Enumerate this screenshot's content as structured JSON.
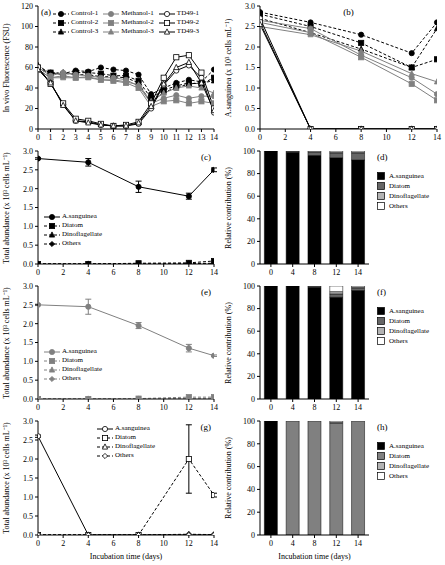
{
  "chart_data": [
    {
      "type": "line",
      "title": "(a)",
      "ylabel": "In vivo Fluorescence (FSU)",
      "x": [
        0,
        1,
        2,
        3,
        4,
        5,
        6,
        7,
        8,
        9,
        10,
        11,
        12,
        13,
        14
      ],
      "xlim": [
        0,
        14
      ],
      "xticks": [
        0,
        1,
        2,
        3,
        4,
        5,
        6,
        7,
        8,
        9,
        10,
        11,
        12,
        13,
        14
      ],
      "ylim": [
        0,
        120
      ],
      "yticks": [
        0,
        20,
        40,
        60,
        80,
        100,
        120
      ],
      "legend": "upper center",
      "series": [
        {
          "name": "Control-1",
          "color": "#000000",
          "marker": "circle",
          "line_style": "dashed",
          "values": [
            60,
            55,
            54,
            57,
            56,
            60,
            58,
            57,
            53,
            34,
            40,
            45,
            48,
            46,
            58
          ]
        },
        {
          "name": "Control-2",
          "color": "#000000",
          "marker": "square",
          "line_style": "dashed",
          "values": [
            58,
            55,
            53,
            55,
            55,
            54,
            52,
            52,
            47,
            30,
            38,
            42,
            45,
            44,
            50
          ]
        },
        {
          "name": "Control-3",
          "color": "#000000",
          "marker": "triangle",
          "line_style": "dashed",
          "values": [
            62,
            54,
            55,
            53,
            53,
            51,
            51,
            50,
            45,
            25,
            36,
            40,
            44,
            45,
            47
          ]
        },
        {
          "name": "Methanol-1",
          "color": "#808080",
          "marker": "circle",
          "line_style": "solid",
          "values": [
            60,
            52,
            55,
            53,
            52,
            50,
            50,
            48,
            42,
            25,
            30,
            33,
            30,
            32,
            32
          ]
        },
        {
          "name": "Methanol-2",
          "color": "#808080",
          "marker": "square",
          "line_style": "solid",
          "values": [
            58,
            50,
            52,
            50,
            51,
            48,
            47,
            45,
            40,
            22,
            27,
            28,
            25,
            27,
            25
          ]
        },
        {
          "name": "Methanol-3",
          "color": "#808080",
          "marker": "triangle",
          "line_style": "solid",
          "values": [
            58,
            50,
            50,
            50,
            50,
            48,
            48,
            46,
            43,
            27,
            35,
            40,
            42,
            40,
            35
          ]
        },
        {
          "name": "TD49-1",
          "color": "#000000",
          "marker": "open_circle",
          "line_style": "solid",
          "values": [
            60,
            45,
            24,
            8,
            7,
            4,
            3,
            3,
            5,
            20,
            43,
            57,
            62,
            50,
            16
          ]
        },
        {
          "name": "TD49-2",
          "color": "#000000",
          "marker": "open_square",
          "line_style": "solid",
          "values": [
            60,
            44,
            25,
            10,
            8,
            5,
            3,
            4,
            7,
            25,
            50,
            70,
            72,
            55,
            20
          ]
        },
        {
          "name": "TD49-3",
          "color": "#000000",
          "marker": "open_triangle",
          "line_style": "solid",
          "values": [
            58,
            45,
            23,
            8,
            6,
            4,
            3,
            3,
            6,
            22,
            44,
            60,
            65,
            45,
            18
          ]
        }
      ]
    },
    {
      "type": "line",
      "title": "(b)",
      "ylabel": "A.sanguinea (x 10³ cells mL⁻¹)",
      "x": [
        0,
        4,
        8,
        12,
        14
      ],
      "xlim": [
        0,
        14
      ],
      "xticks": [
        0,
        2,
        4,
        6,
        8,
        10,
        12,
        14
      ],
      "ylim": [
        0,
        3
      ],
      "yticks": [
        {
          "value": 0,
          "label": "0.0"
        },
        {
          "value": 0.5,
          "label": "0.5"
        },
        {
          "value": 1,
          "label": "1.0"
        },
        {
          "value": 1.5,
          "label": "1.5"
        },
        {
          "value": 2,
          "label": "2.0"
        },
        {
          "value": 2.5,
          "label": "2.5"
        },
        {
          "value": 3,
          "label": "3.0"
        }
      ],
      "series": [
        {
          "name": "Control-1",
          "color": "#000000",
          "marker": "circle",
          "line_style": "dashed",
          "values": [
            2.85,
            2.6,
            2.3,
            1.85,
            2.6
          ]
        },
        {
          "name": "Control-2",
          "color": "#000000",
          "marker": "square",
          "line_style": "dashed",
          "values": [
            2.8,
            2.5,
            2.1,
            1.5,
            1.7
          ]
        },
        {
          "name": "Control-3",
          "color": "#000000",
          "marker": "triangle",
          "line_style": "dashed",
          "values": [
            2.7,
            2.35,
            1.95,
            1.5,
            2.45
          ]
        },
        {
          "name": "Methanol-1",
          "color": "#808080",
          "marker": "circle",
          "line_style": "solid",
          "values": [
            2.65,
            2.45,
            1.8,
            1.25,
            0.85
          ]
        },
        {
          "name": "Methanol-2",
          "color": "#808080",
          "marker": "square",
          "line_style": "solid",
          "values": [
            2.6,
            2.35,
            1.75,
            1.1,
            0.7
          ]
        },
        {
          "name": "Methanol-3",
          "color": "#808080",
          "marker": "triangle",
          "line_style": "solid",
          "values": [
            2.5,
            2.3,
            1.9,
            1.35,
            1.15
          ]
        },
        {
          "name": "TD49-1",
          "color": "#000000",
          "marker": "open_circle",
          "line_style": "solid",
          "values": [
            2.7,
            0,
            0,
            0,
            0
          ]
        },
        {
          "name": "TD49-2",
          "color": "#000000",
          "marker": "open_square",
          "line_style": "solid",
          "values": [
            2.6,
            0,
            0,
            0,
            0
          ]
        },
        {
          "name": "TD49-3",
          "color": "#000000",
          "marker": "open_triangle",
          "line_style": "solid",
          "values": [
            2.55,
            0,
            0,
            0,
            0
          ]
        }
      ]
    },
    {
      "type": "line",
      "title": "(c)",
      "ylabel": "Total abundance (x 10³ cells mL⁻¹)",
      "x": [
        0,
        4,
        8,
        12,
        14
      ],
      "xlim": [
        0,
        14
      ],
      "xticks": [
        0,
        2,
        4,
        6,
        8,
        10,
        12,
        14
      ],
      "ylim": [
        0,
        3
      ],
      "yticks": [
        {
          "value": 0,
          "label": "0.0"
        },
        {
          "value": 0.5,
          "label": "0.5"
        },
        {
          "value": 1,
          "label": "1.0"
        },
        {
          "value": 1.5,
          "label": "1.5"
        },
        {
          "value": 2,
          "label": "2.0"
        },
        {
          "value": 2.5,
          "label": "2.5"
        },
        {
          "value": 3,
          "label": "3.0"
        }
      ],
      "legend": "lower left",
      "series": [
        {
          "name": "A.sanguinea",
          "color": "#000000",
          "marker": "circle",
          "line_style": "solid",
          "values": [
            2.8,
            2.7,
            2.05,
            1.8,
            2.5
          ],
          "errors": [
            0.02,
            0.1,
            0.15,
            0.08,
            0.05
          ]
        },
        {
          "name": "Diatom",
          "color": "#000000",
          "marker": "square",
          "line_style": "dashed",
          "values": [
            0,
            0,
            0.02,
            0.03,
            0.08
          ]
        },
        {
          "name": "Dinoflagellate",
          "color": "#000000",
          "marker": "triangle",
          "line_style": "dashed",
          "values": [
            0,
            0,
            0,
            0.01,
            0.02
          ]
        },
        {
          "name": "Others",
          "color": "#000000",
          "marker": "diamond",
          "line_style": "dashed",
          "values": [
            0,
            0,
            0,
            0,
            0
          ]
        }
      ]
    },
    {
      "type": "bar",
      "title": "(d)",
      "ylabel": "Relative contribution (%)",
      "stacked": true,
      "categories": [
        "0",
        "4",
        "8",
        "12",
        "14"
      ],
      "ylim": [
        0,
        100
      ],
      "yticks": [
        0,
        20,
        40,
        60,
        80,
        100
      ],
      "legend": "right",
      "series": [
        {
          "name": "A.sanguinea",
          "color": "#000000",
          "values": [
            100,
            99,
            96,
            94,
            92
          ]
        },
        {
          "name": "Diatom",
          "color": "#666666",
          "values": [
            0,
            1,
            3,
            4,
            6
          ]
        },
        {
          "name": "Dinoflagellate",
          "color": "#b3b3b3",
          "values": [
            0,
            0,
            1,
            1,
            1
          ]
        },
        {
          "name": "Others",
          "color": "#ffffff",
          "values": [
            0,
            0,
            0,
            1,
            1
          ]
        }
      ]
    },
    {
      "type": "line",
      "title": "(e)",
      "ylabel": "Total abundance (x 10³ cells mL⁻¹)",
      "x": [
        0,
        4,
        8,
        12,
        14
      ],
      "xlim": [
        0,
        14
      ],
      "xticks": [
        0,
        2,
        4,
        6,
        8,
        10,
        12,
        14
      ],
      "ylim": [
        0,
        3
      ],
      "yticks": [
        {
          "value": 0,
          "label": "0.0"
        },
        {
          "value": 0.5,
          "label": "0.5"
        },
        {
          "value": 1,
          "label": "1.0"
        },
        {
          "value": 1.5,
          "label": "1.5"
        },
        {
          "value": 2,
          "label": "2.0"
        },
        {
          "value": 2.5,
          "label": "2.5"
        },
        {
          "value": 3,
          "label": "3.0"
        }
      ],
      "legend": "lower left",
      "series": [
        {
          "name": "A.sanguinea",
          "color": "#808080",
          "marker": "circle",
          "line_style": "solid",
          "values": [
            2.5,
            2.45,
            1.95,
            1.35,
            1.15
          ],
          "errors": [
            0.02,
            0.2,
            0.08,
            0.1,
            0.02
          ]
        },
        {
          "name": "Diatom",
          "color": "#808080",
          "marker": "square",
          "line_style": "dashed",
          "values": [
            0,
            0,
            0.01,
            0.05,
            0.05
          ]
        },
        {
          "name": "Dinoflagellate",
          "color": "#808080",
          "marker": "triangle",
          "line_style": "dashed",
          "values": [
            0,
            0,
            0,
            0.02,
            0.02
          ]
        },
        {
          "name": "Others",
          "color": "#808080",
          "marker": "diamond",
          "line_style": "dashed",
          "values": [
            0,
            0,
            0,
            0,
            0
          ]
        }
      ]
    },
    {
      "type": "bar",
      "title": "(f)",
      "ylabel": "Relative contribution (%)",
      "stacked": true,
      "categories": [
        "0",
        "4",
        "8",
        "12",
        "14"
      ],
      "ylim": [
        0,
        100
      ],
      "yticks": [
        0,
        20,
        40,
        60,
        80,
        100
      ],
      "legend": "right",
      "series": [
        {
          "name": "A.sanguinea",
          "color": "#000000",
          "values": [
            100,
            100,
            99,
            90,
            96
          ]
        },
        {
          "name": "Diatom",
          "color": "#666666",
          "values": [
            0,
            0,
            1,
            3,
            2
          ]
        },
        {
          "name": "Dinoflagellate",
          "color": "#b3b3b3",
          "values": [
            0,
            0,
            0,
            2,
            1
          ]
        },
        {
          "name": "Others",
          "color": "#ffffff",
          "values": [
            0,
            0,
            0,
            5,
            1
          ]
        }
      ]
    },
    {
      "type": "line",
      "title": "(g)",
      "ylabel": "Total abundance (x 10³ cells mL⁻¹)",
      "xlabel": "Incubation time (days)",
      "x": [
        0,
        4,
        8,
        12,
        14
      ],
      "xlim": [
        0,
        14
      ],
      "xticks": [
        0,
        2,
        4,
        6,
        8,
        10,
        12,
        14
      ],
      "ylim": [
        0,
        3
      ],
      "yticks": [
        {
          "value": 0,
          "label": "0.0"
        },
        {
          "value": 0.5,
          "label": "0.5"
        },
        {
          "value": 1,
          "label": "1.0"
        },
        {
          "value": 1.5,
          "label": "1.5"
        },
        {
          "value": 2,
          "label": "2.0"
        },
        {
          "value": 2.5,
          "label": "2.5"
        },
        {
          "value": 3,
          "label": "3.0"
        }
      ],
      "legend": "upper center",
      "series": [
        {
          "name": "A.sanguinea",
          "color": "#000000",
          "marker": "open_circle",
          "line_style": "solid",
          "values": [
            2.6,
            0,
            0,
            0,
            0
          ],
          "errors": [
            0.03,
            0,
            0,
            0,
            0
          ]
        },
        {
          "name": "Diatom",
          "color": "#000000",
          "marker": "open_square",
          "line_style": "dashed",
          "values": [
            0,
            0,
            0,
            2.0,
            1.05
          ],
          "errors": [
            0,
            0,
            0,
            0.9,
            0.05
          ]
        },
        {
          "name": "Dinoflagellate",
          "color": "#000000",
          "marker": "open_triangle",
          "line_style": "dashed",
          "values": [
            0,
            0,
            0,
            0.02,
            0.01
          ]
        },
        {
          "name": "Others",
          "color": "#000000",
          "marker": "open_diamond",
          "line_style": "dashed",
          "values": [
            0,
            0,
            0,
            0,
            0
          ]
        }
      ]
    },
    {
      "type": "bar",
      "title": "(h)",
      "ylabel": "Relative contribution (%)",
      "xlabel": "Incubation time (days)",
      "stacked": true,
      "categories": [
        "0",
        "4",
        "8",
        "12",
        "14"
      ],
      "ylim": [
        0,
        100
      ],
      "yticks": [
        0,
        20,
        40,
        60,
        80,
        100
      ],
      "legend": "right",
      "series": [
        {
          "name": "A.sanguinea",
          "color": "#000000",
          "values": [
            100,
            0,
            0,
            0,
            0
          ]
        },
        {
          "name": "Diatom",
          "color": "#808080",
          "values": [
            0,
            100,
            100,
            98,
            100
          ]
        },
        {
          "name": "Dinoflagellate",
          "color": "#b3b3b3",
          "values": [
            0,
            0,
            0,
            1,
            0
          ]
        },
        {
          "name": "Others",
          "color": "#ffffff",
          "values": [
            0,
            0,
            0,
            1,
            0
          ]
        }
      ]
    }
  ]
}
